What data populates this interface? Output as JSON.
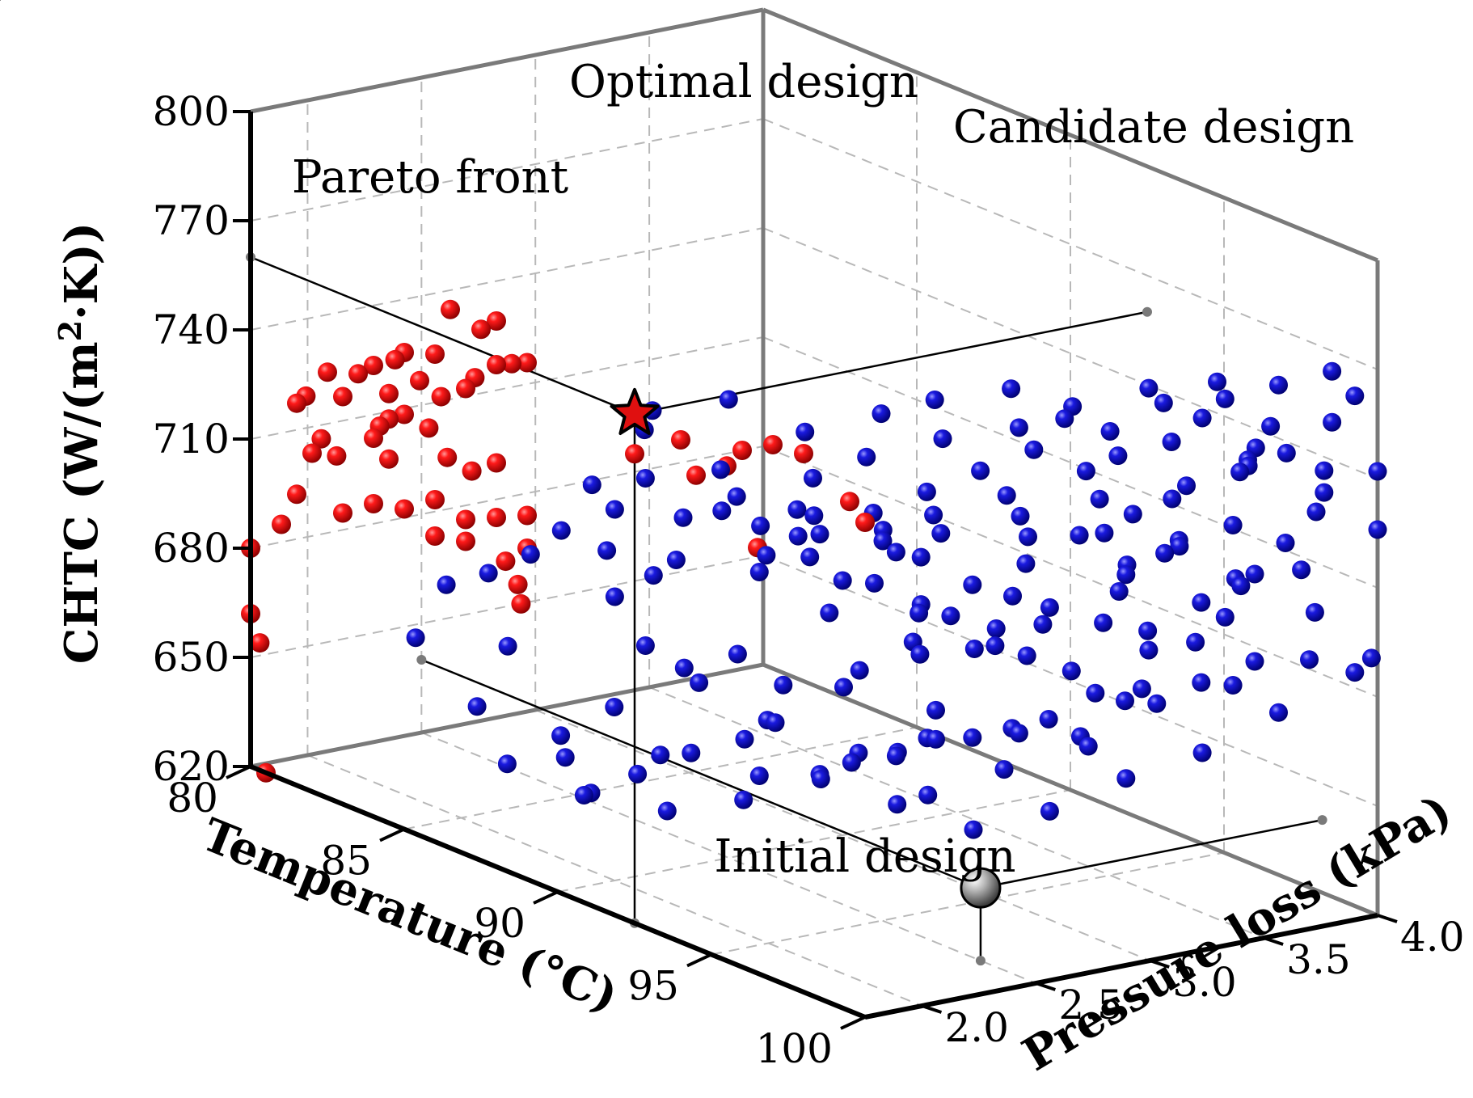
{
  "chart_data": {
    "type": "scatter3d",
    "title": "",
    "axes": {
      "x": {
        "label": "Temperature (°C)",
        "range": [
          80,
          100
        ],
        "ticks": [
          "80",
          "85",
          "90",
          "95",
          "100"
        ]
      },
      "y": {
        "label": "Pressure loss (kPa)",
        "range": [
          1.75,
          4.0
        ],
        "ticks": [
          "2.0",
          "2.5",
          "3.0",
          "3.5",
          "4.0"
        ]
      },
      "z": {
        "label_prefix": "CHTC (W/(m",
        "label_sup": "2",
        "label_suffix": "·K))",
        "range": [
          620,
          800
        ],
        "ticks": [
          "620",
          "650",
          "680",
          "710",
          "740",
          "770",
          "800"
        ]
      }
    },
    "series": [
      {
        "name": "Pareto front",
        "color": "#e01010",
        "points": [
          [
            80,
            1.75,
            680
          ],
          [
            80,
            1.75,
            662
          ],
          [
            80.3,
            1.75,
            655
          ],
          [
            80.5,
            1.75,
            620
          ],
          [
            81,
            1.75,
            690
          ],
          [
            81.5,
            1.75,
            700
          ],
          [
            82,
            1.75,
            713
          ],
          [
            82.3,
            1.75,
            718
          ],
          [
            82.8,
            1.75,
            715
          ],
          [
            81.5,
            1.75,
            725
          ],
          [
            81.8,
            1.75,
            728
          ],
          [
            82.5,
            1.75,
            737
          ],
          [
            83,
            1.75,
            732
          ],
          [
            84.5,
            1.75,
            738
          ],
          [
            84.7,
            1.75,
            748
          ],
          [
            85,
            1.75,
            751
          ],
          [
            86,
            1.75,
            754
          ],
          [
            86.5,
            1.75,
            768
          ],
          [
            88,
            1.75,
            770
          ],
          [
            87.5,
            1.75,
            766
          ],
          [
            83.5,
            1.75,
            740
          ],
          [
            84,
            1.75,
            744
          ],
          [
            85.5,
            1.75,
            745
          ],
          [
            86.2,
            1.75,
            743
          ],
          [
            87,
            1.75,
            748
          ],
          [
            87.3,
            1.75,
            752
          ],
          [
            88,
            1.75,
            758
          ],
          [
            88.5,
            1.75,
            760
          ],
          [
            89,
            1.75,
            762
          ],
          [
            84.2,
            1.75,
            728
          ],
          [
            84.5,
            1.75,
            731
          ],
          [
            85,
            1.75,
            734
          ],
          [
            84,
            1.75,
            724
          ],
          [
            84.5,
            1.75,
            720
          ],
          [
            85.8,
            1.75,
            733
          ],
          [
            86.4,
            1.75,
            727
          ],
          [
            87.2,
            1.75,
            726
          ],
          [
            88,
            1.75,
            731
          ],
          [
            86,
            1.75,
            714
          ],
          [
            87,
            1.75,
            712
          ],
          [
            88,
            1.75,
            716
          ],
          [
            89,
            1.75,
            720
          ],
          [
            85,
            1.75,
            708
          ],
          [
            86,
            1.75,
            704
          ],
          [
            87,
            1.75,
            706
          ],
          [
            88.3,
            1.75,
            705
          ],
          [
            89,
            1.75,
            711
          ],
          [
            88.7,
            1.75,
            700
          ],
          [
            88.8,
            1.75,
            695
          ],
          [
            83,
            1.75,
            700
          ],
          [
            84,
            1.75,
            706
          ],
          [
            94,
            1.75,
            758
          ],
          [
            94.5,
            1.75,
            750
          ],
          [
            95.5,
            1.75,
            756
          ],
          [
            96,
            1.75,
            762
          ],
          [
            97,
            1.75,
            767
          ],
          [
            98,
            1.75,
            768
          ],
          [
            99.5,
            1.75,
            760
          ],
          [
            100,
            1.75,
            756
          ],
          [
            96.5,
            1.75,
            737
          ],
          [
            92.5,
            1.75,
            749
          ]
        ]
      },
      {
        "name": "Candidate design",
        "color": "#1212d8",
        "points": [
          [
            88,
            1.8,
            680
          ],
          [
            87,
            1.8,
            660
          ],
          [
            89.5,
            1.85,
            654
          ],
          [
            93,
            1.9,
            690
          ],
          [
            94,
            2,
            696
          ],
          [
            92,
            1.9,
            712
          ],
          [
            90,
            1.9,
            730
          ],
          [
            92,
            2,
            715
          ],
          [
            94,
            2.1,
            730
          ],
          [
            95,
            2.2,
            735
          ],
          [
            96.5,
            2.3,
            732
          ],
          [
            97,
            2.4,
            728
          ],
          [
            95.5,
            2.2,
            710
          ],
          [
            97,
            2.4,
            715
          ],
          [
            98,
            2.5,
            705
          ],
          [
            98.5,
            2.6,
            720
          ],
          [
            99,
            2.6,
            738
          ],
          [
            100,
            2.8,
            740
          ],
          [
            100,
            2.9,
            730
          ],
          [
            99,
            3,
            718
          ],
          [
            98,
            2.8,
            708
          ],
          [
            96,
            2.5,
            700
          ],
          [
            95,
            2.4,
            690
          ],
          [
            94,
            2.2,
            685
          ],
          [
            96,
            2.6,
            680
          ],
          [
            95.5,
            2.5,
            668
          ],
          [
            96,
            2.6,
            672
          ],
          [
            97,
            2.8,
            676
          ],
          [
            98,
            3,
            672
          ],
          [
            99,
            3.1,
            690
          ],
          [
            100,
            3.2,
            705
          ],
          [
            100,
            3.4,
            718
          ],
          [
            99,
            3.2,
            726
          ],
          [
            98.5,
            3.3,
            738
          ],
          [
            99.5,
            3.5,
            748
          ],
          [
            100,
            3.6,
            752
          ],
          [
            99,
            3.7,
            766
          ],
          [
            98,
            3.6,
            760
          ],
          [
            100,
            3.8,
            772
          ],
          [
            100,
            3.9,
            764
          ],
          [
            99,
            3.5,
            730
          ],
          [
            98,
            3.4,
            722
          ],
          [
            97,
            3.3,
            712
          ],
          [
            96,
            3.1,
            702
          ],
          [
            95,
            3,
            694
          ],
          [
            94,
            2.8,
            686
          ],
          [
            93,
            2.6,
            676
          ],
          [
            92,
            2.4,
            666
          ],
          [
            91,
            2.2,
            656
          ],
          [
            90,
            2.1,
            648
          ],
          [
            89,
            2,
            640
          ],
          [
            90,
            2.2,
            652
          ],
          [
            91,
            2.5,
            646
          ],
          [
            92,
            2.8,
            652
          ],
          [
            93.5,
            2.9,
            660
          ],
          [
            95,
            3.1,
            664
          ],
          [
            96,
            3.3,
            676
          ],
          [
            97,
            3.4,
            690
          ],
          [
            98,
            3.6,
            700
          ],
          [
            99,
            3.8,
            714
          ],
          [
            100,
            4,
            726
          ],
          [
            99,
            3.9,
            740
          ],
          [
            98,
            3.8,
            750
          ],
          [
            97,
            3.7,
            760
          ],
          [
            96,
            3.6,
            752
          ],
          [
            95,
            3.5,
            742
          ],
          [
            94,
            3.3,
            736
          ],
          [
            93,
            3.2,
            728
          ],
          [
            92,
            3.1,
            720
          ],
          [
            91,
            3,
            712
          ],
          [
            90,
            2.9,
            704
          ],
          [
            89,
            2.8,
            696
          ],
          [
            90,
            3,
            690
          ],
          [
            91,
            3.2,
            682
          ],
          [
            92,
            3.4,
            674
          ],
          [
            93,
            3.6,
            668
          ],
          [
            94,
            3.8,
            680
          ],
          [
            95,
            3.9,
            690
          ],
          [
            96,
            4,
            700
          ],
          [
            97,
            4,
            712
          ],
          [
            98,
            4,
            724
          ],
          [
            97,
            3.8,
            734
          ],
          [
            96,
            3.7,
            728
          ],
          [
            95,
            3.6,
            718
          ],
          [
            94,
            3.5,
            710
          ],
          [
            93,
            3.4,
            700
          ],
          [
            92,
            3.3,
            692
          ],
          [
            91,
            3.1,
            700
          ],
          [
            90,
            2.8,
            712
          ],
          [
            89,
            2.6,
            722
          ],
          [
            88,
            2.4,
            732
          ],
          [
            89,
            2.3,
            742
          ],
          [
            90,
            2.5,
            746
          ],
          [
            91,
            2.7,
            738
          ],
          [
            92,
            2.9,
            744
          ],
          [
            93,
            3,
            750
          ],
          [
            94,
            3.2,
            754
          ],
          [
            95,
            3.3,
            748
          ],
          [
            96,
            3.4,
            740
          ],
          [
            97,
            3.5,
            746
          ],
          [
            98,
            3.7,
            742
          ],
          [
            99,
            3.9,
            734
          ],
          [
            100,
            4,
            742
          ],
          [
            97,
            3.2,
            700
          ],
          [
            96,
            3,
            690
          ],
          [
            95,
            2.8,
            700
          ],
          [
            94,
            2.6,
            708
          ],
          [
            93,
            2.4,
            720
          ],
          [
            92,
            2.2,
            726
          ],
          [
            91,
            2,
            734
          ],
          [
            90,
            2,
            722
          ],
          [
            89,
            1.9,
            714
          ],
          [
            88,
            1.9,
            704
          ],
          [
            87,
            1.85,
            696
          ],
          [
            86,
            1.8,
            690
          ],
          [
            85,
            1.8,
            672
          ],
          [
            92,
            2.3,
            662
          ],
          [
            93,
            2.5,
            652
          ],
          [
            94,
            2.7,
            646
          ],
          [
            95,
            2.9,
            640
          ],
          [
            96,
            3.1,
            646
          ],
          [
            97,
            3.3,
            656
          ],
          [
            98,
            3.5,
            664
          ],
          [
            99,
            3.7,
            676
          ],
          [
            100,
            3.9,
            688
          ],
          [
            100,
            3.7,
            694
          ],
          [
            99,
            3.5,
            686
          ],
          [
            98,
            3.3,
            680
          ],
          [
            97,
            3.1,
            670
          ],
          [
            96,
            2.9,
            660
          ],
          [
            95,
            2.7,
            652
          ],
          [
            94,
            2.5,
            660
          ],
          [
            93,
            2.3,
            670
          ],
          [
            92,
            2.1,
            680
          ],
          [
            91,
            2,
            688
          ],
          [
            90,
            2,
            698
          ],
          [
            89,
            2.1,
            706
          ],
          [
            90,
            2.3,
            716
          ],
          [
            91,
            2.4,
            724
          ],
          [
            92,
            2.6,
            730
          ],
          [
            93,
            2.7,
            738
          ],
          [
            94,
            2.9,
            744
          ],
          [
            95,
            3.1,
            748
          ],
          [
            96,
            3.2,
            756
          ],
          [
            97,
            3.4,
            762
          ],
          [
            98,
            3.5,
            756
          ],
          [
            99,
            3.6,
            750
          ],
          [
            100,
            3.8,
            758
          ],
          [
            95.7,
            3.3,
            736
          ],
          [
            94.6,
            3.1,
            728
          ],
          [
            93.7,
            2.9,
            722
          ],
          [
            92.8,
            2.8,
            716
          ],
          [
            91.9,
            2.6,
            708
          ],
          [
            91,
            2.5,
            702
          ],
          [
            93.2,
            3,
            714
          ],
          [
            94.3,
            3.2,
            720
          ],
          [
            95.4,
            3.4,
            726
          ],
          [
            96.5,
            3.6,
            716
          ],
          [
            97.6,
            3.7,
            708
          ],
          [
            98.7,
            3.9,
            700
          ],
          [
            99.8,
            4,
            690
          ],
          [
            88.5,
            2.2,
            660
          ],
          [
            87.5,
            2.1,
            650
          ],
          [
            86.5,
            2,
            640
          ],
          [
            87,
            2.3,
            630
          ],
          [
            88,
            2.5,
            626
          ],
          [
            89,
            2.7,
            630
          ],
          [
            90,
            2.9,
            638
          ],
          [
            91,
            3.1,
            644
          ],
          [
            92,
            3.3,
            650
          ],
          [
            93,
            3.5,
            656
          ],
          [
            94,
            3.7,
            662
          ],
          [
            95,
            3.9,
            668
          ],
          [
            96,
            4,
            676
          ]
        ]
      },
      {
        "name": "Optimal design",
        "color": "#e01010",
        "marker": "star",
        "points": [
          [
            92.5,
            1.75,
            760
          ]
        ]
      },
      {
        "name": "Initial design",
        "color": "#9a9a9a",
        "marker": "sphere",
        "points": [
          [
            98.2,
            2.5,
            640
          ]
        ]
      }
    ],
    "annotations": [
      "Optimal design",
      "Candidate design",
      "Pareto front",
      "Initial design"
    ]
  }
}
